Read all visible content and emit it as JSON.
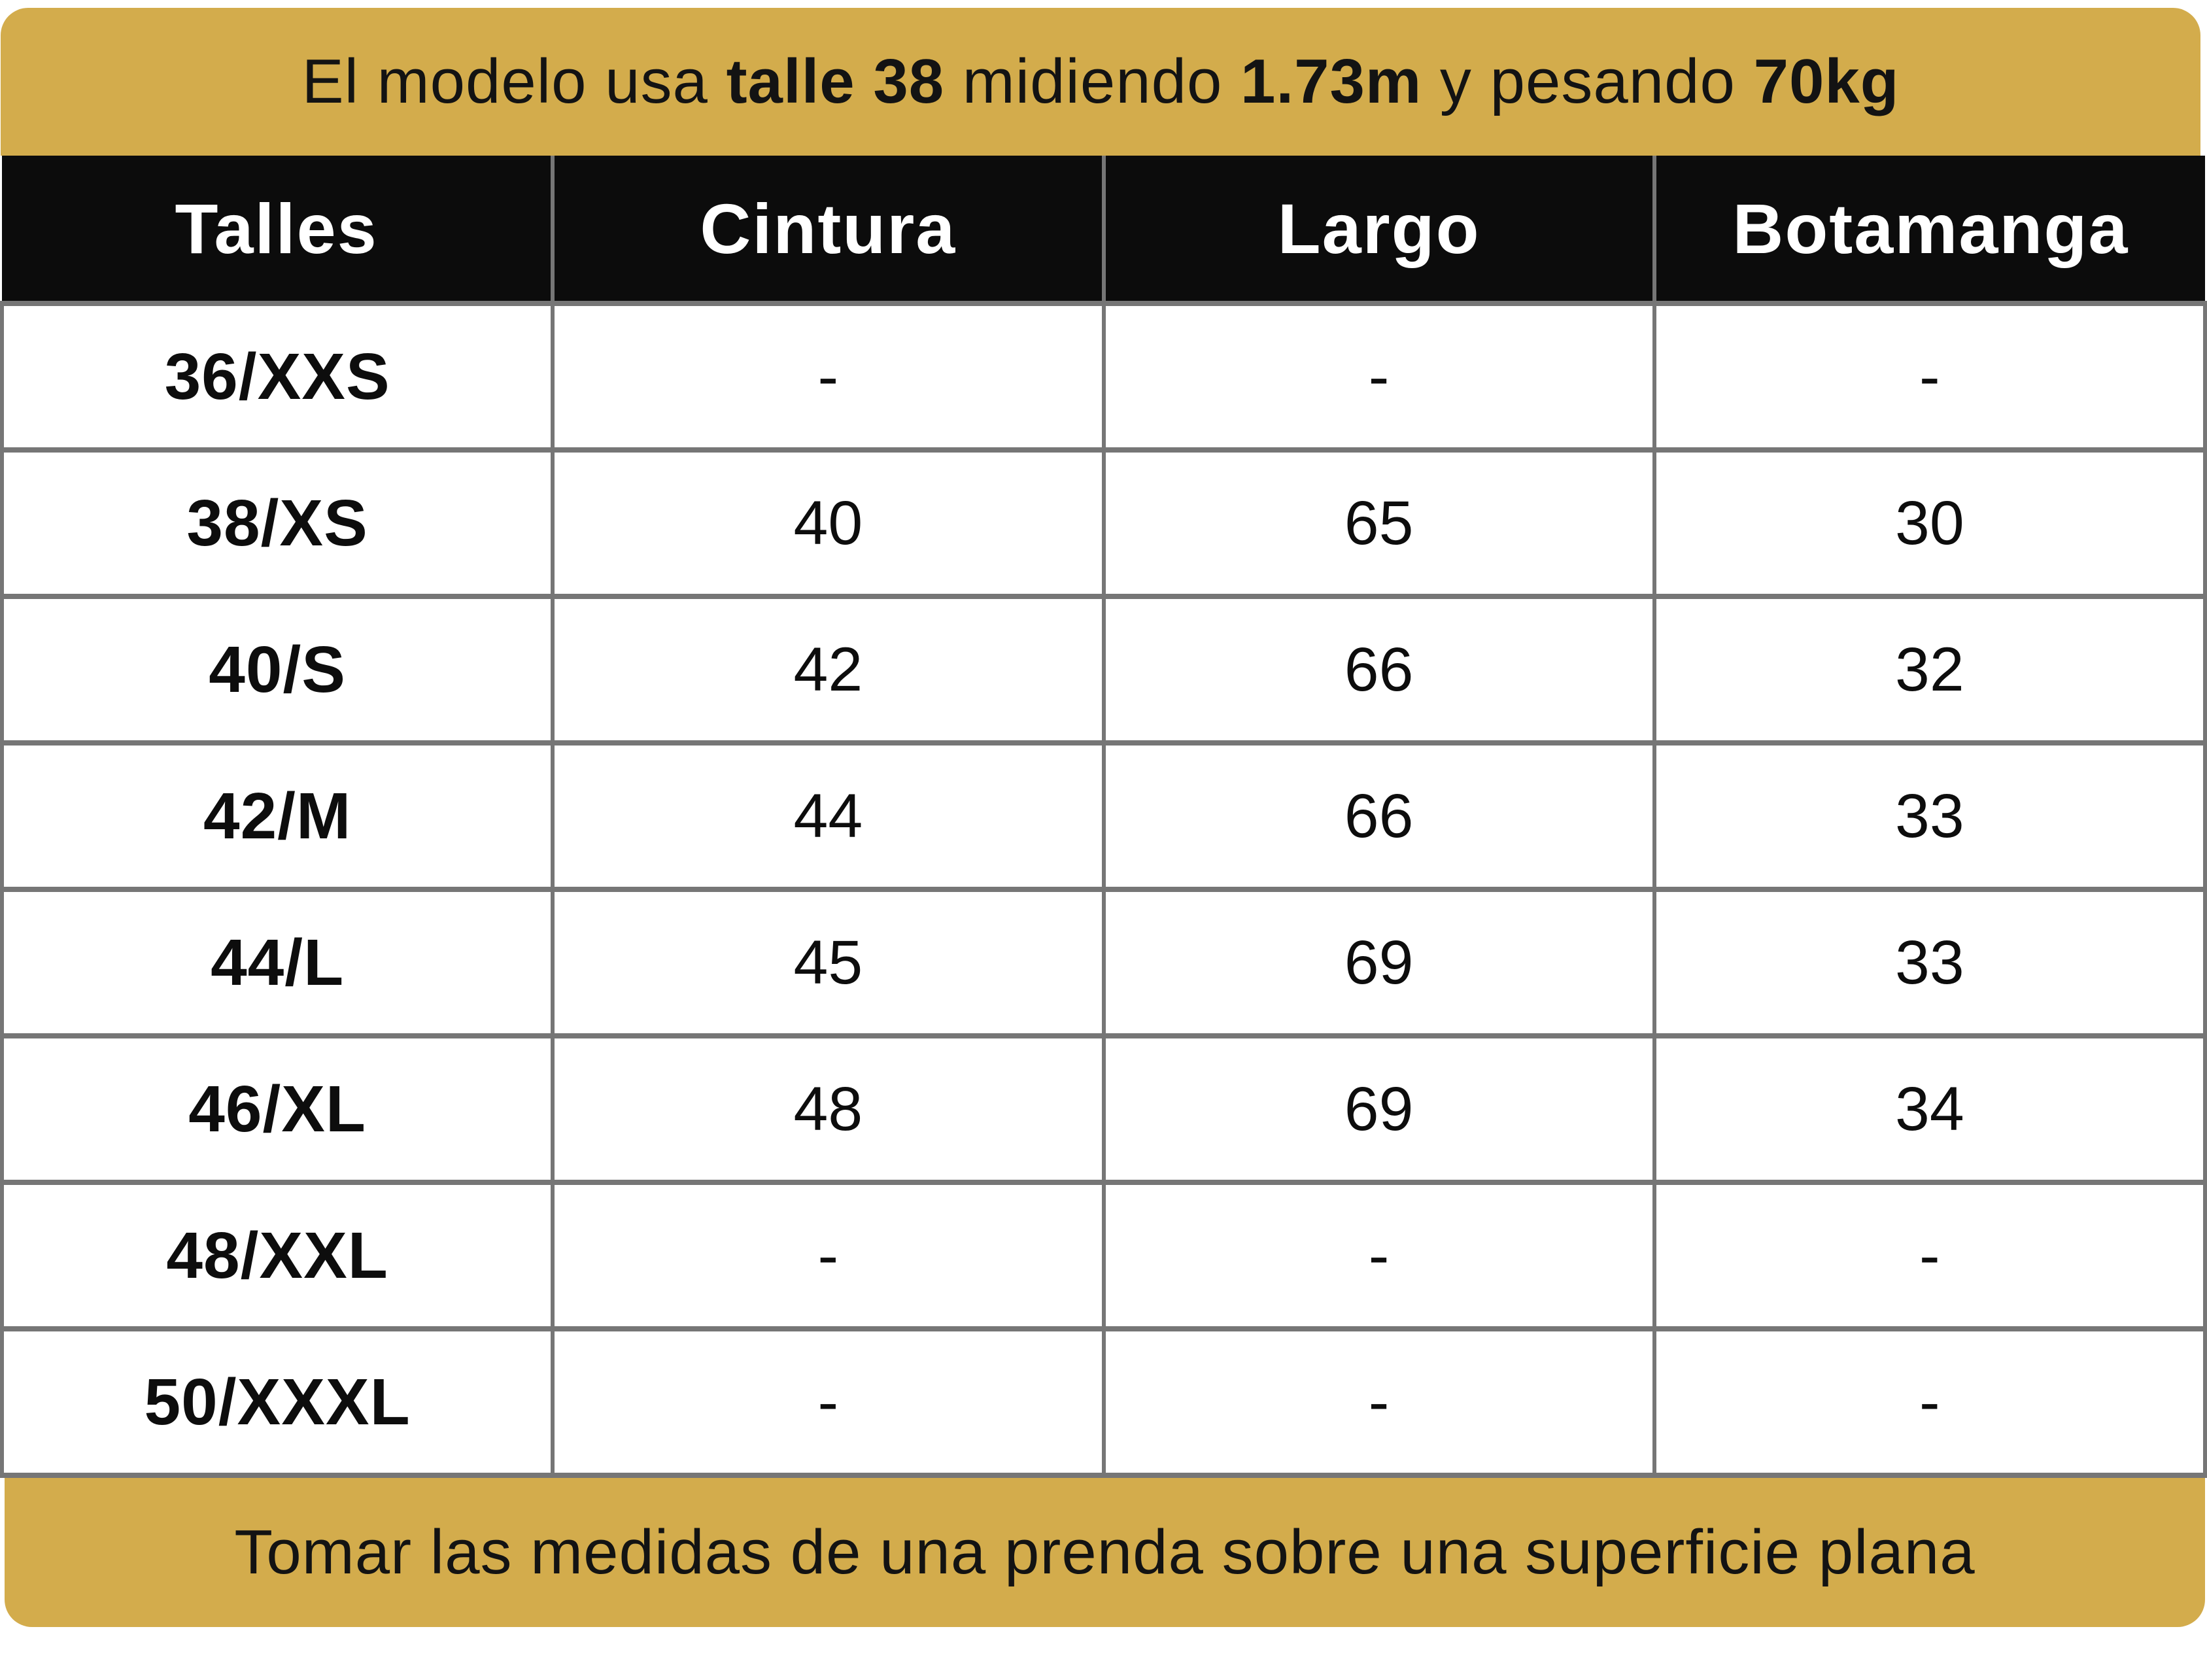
{
  "top_banner": {
    "segments": [
      {
        "text": "El modelo usa ",
        "bold": false
      },
      {
        "text": "talle 38",
        "bold": true
      },
      {
        "text": " midiendo ",
        "bold": false
      },
      {
        "text": "1.73m",
        "bold": true
      },
      {
        "text": " y pesando ",
        "bold": false
      },
      {
        "text": "70kg",
        "bold": true
      }
    ]
  },
  "table": {
    "headers": [
      "Talles",
      "Cintura",
      "Largo",
      "Botamanga"
    ],
    "rows": [
      {
        "size": "36/XXS",
        "values": [
          "-",
          "-",
          "-"
        ]
      },
      {
        "size": "38/XS",
        "values": [
          "40",
          "65",
          "30"
        ]
      },
      {
        "size": "40/S",
        "values": [
          "42",
          "66",
          "32"
        ]
      },
      {
        "size": "42/M",
        "values": [
          "44",
          "66",
          "33"
        ]
      },
      {
        "size": "44/L",
        "values": [
          "45",
          "69",
          "33"
        ]
      },
      {
        "size": "46/XL",
        "values": [
          "48",
          "69",
          "34"
        ]
      },
      {
        "size": "48/XXL",
        "values": [
          "-",
          "-",
          "-"
        ]
      },
      {
        "size": "50/XXXL",
        "values": [
          "-",
          "-",
          "-"
        ]
      }
    ]
  },
  "bottom_banner": {
    "text": "Tomar las medidas de una prenda sobre una superficie plana"
  },
  "colors": {
    "gold": "#D3AC4C",
    "header_bg": "#0C0C0C",
    "border_gray": "#767676",
    "header_text": "#FFFFFF",
    "body_text": "#131313"
  },
  "chart_data": {
    "type": "table",
    "title": "El modelo usa talle 38 midiendo 1.73m y pesando 70kg",
    "columns": [
      "Talles",
      "Cintura",
      "Largo",
      "Botamanga"
    ],
    "rows": [
      [
        "36/XXS",
        "-",
        "-",
        "-"
      ],
      [
        "38/XS",
        "40",
        "65",
        "30"
      ],
      [
        "40/S",
        "42",
        "66",
        "32"
      ],
      [
        "42/M",
        "44",
        "66",
        "33"
      ],
      [
        "44/L",
        "45",
        "69",
        "33"
      ],
      [
        "46/XL",
        "48",
        "69",
        "34"
      ],
      [
        "48/XXL",
        "-",
        "-",
        "-"
      ],
      [
        "50/XXXL",
        "-",
        "-",
        "-"
      ]
    ],
    "note": "Tomar las medidas de una prenda sobre una superficie plana"
  }
}
